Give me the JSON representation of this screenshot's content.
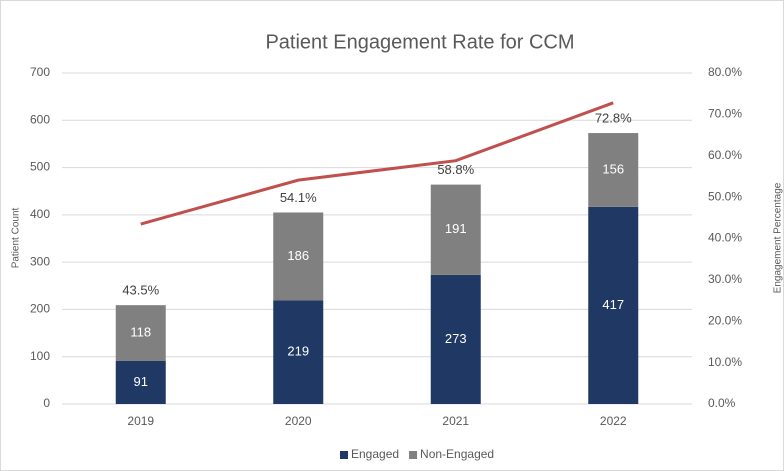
{
  "chart_data": {
    "type": "bar",
    "title": "Patient Engagement Rate for CCM",
    "ylabel": "Patient Count",
    "y2label": "Engagement Percentage",
    "categories": [
      "2019",
      "2020",
      "2021",
      "2022"
    ],
    "series": [
      {
        "name": "Engaged",
        "color": "#1f3864",
        "values": [
          91,
          219,
          273,
          417
        ]
      },
      {
        "name": "Non-Engaged",
        "color": "#808080",
        "values": [
          118,
          186,
          191,
          156
        ]
      },
      {
        "type": "line",
        "axis": "y2",
        "color": "#c0504d",
        "values": [
          43.5,
          54.1,
          58.8,
          72.8
        ],
        "value_labels": [
          "43.5%",
          "54.1%",
          "58.8%",
          "72.8%"
        ]
      }
    ],
    "ylim": [
      0,
      700
    ],
    "yticks": [
      0,
      100,
      200,
      300,
      400,
      500,
      600,
      700
    ],
    "y2lim": [
      0,
      80
    ],
    "y2ticks": [
      {
        "value": 0,
        "label": "0.0%"
      },
      {
        "value": 10,
        "label": "10.0%"
      },
      {
        "value": 20,
        "label": "20.0%"
      },
      {
        "value": 30,
        "label": "30.0%"
      },
      {
        "value": 40,
        "label": "40.0%"
      },
      {
        "value": 50,
        "label": "50.0%"
      },
      {
        "value": 60,
        "label": "60.0%"
      },
      {
        "value": 70,
        "label": "70.0%"
      },
      {
        "value": 80,
        "label": "80.0%"
      }
    ],
    "grid": true,
    "legend": "bottom"
  }
}
